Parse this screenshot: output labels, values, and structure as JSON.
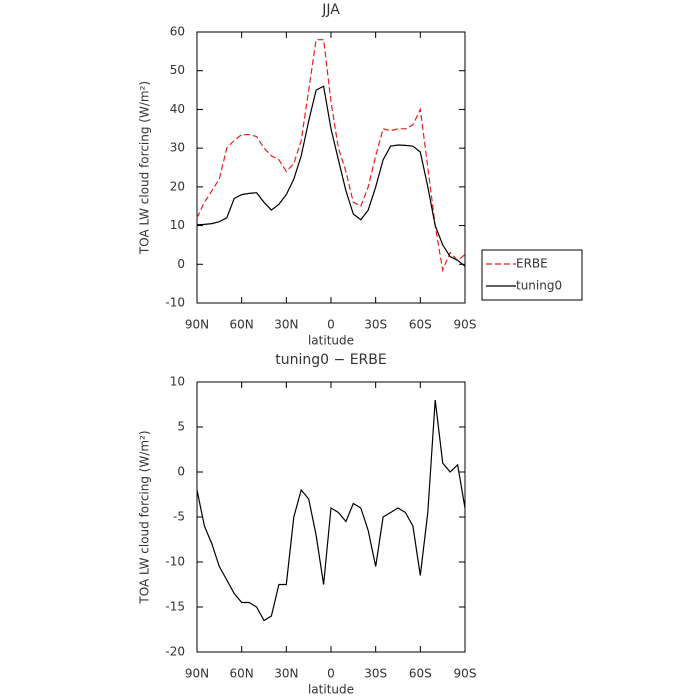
{
  "chart_data": [
    {
      "type": "line",
      "title": "JJA",
      "xlabel": "latitude",
      "ylabel": "TOA LW cloud forcing (W/m²)",
      "x": [
        90,
        85,
        80,
        75,
        70,
        65,
        60,
        55,
        50,
        45,
        40,
        35,
        30,
        25,
        20,
        15,
        10,
        5,
        0,
        -5,
        -10,
        -15,
        -20,
        -25,
        -30,
        -35,
        -40,
        -45,
        -50,
        -55,
        -60,
        -65,
        -70,
        -75,
        -80,
        -85,
        -90
      ],
      "series": [
        {
          "name": "ERBE",
          "color": "#e8221a",
          "dash": true,
          "values": [
            12,
            16,
            19,
            22,
            30,
            32,
            33.5,
            33.5,
            33,
            30,
            28,
            27,
            24,
            26,
            32,
            45,
            58,
            58,
            42,
            30,
            24,
            16,
            15,
            20,
            28,
            35,
            34.5,
            35,
            35,
            36,
            40,
            25,
            10,
            -1.5,
            3,
            1,
            2.5
          ]
        },
        {
          "name": "tuning0",
          "color": "#000000",
          "dash": false,
          "values": [
            10.2,
            10.3,
            10.5,
            11,
            12,
            17,
            18,
            18.3,
            18.5,
            16,
            14,
            15.5,
            18,
            22,
            28,
            37,
            45,
            46,
            35,
            27,
            19,
            13,
            11.5,
            14,
            20,
            27,
            30.5,
            30.8,
            30.7,
            30.5,
            29,
            20,
            10,
            5,
            2,
            1,
            -0.5
          ]
        }
      ],
      "xlim": [
        90,
        -90
      ],
      "xticks": [
        {
          "value": 90,
          "label": "90N"
        },
        {
          "value": 60,
          "label": "60N"
        },
        {
          "value": 30,
          "label": "30N"
        },
        0,
        {
          "value": -30,
          "label": "30S"
        },
        {
          "value": -60,
          "label": "60S"
        },
        {
          "value": -90,
          "label": "90S"
        }
      ],
      "ylim": [
        -10,
        60
      ],
      "yticks": [
        -10,
        0,
        10,
        20,
        30,
        40,
        50,
        60
      ]
    },
    {
      "type": "line",
      "title": "tuning0 − ERBE",
      "xlabel": "latitude",
      "ylabel": "TOA LW cloud forcing (W/m²)",
      "x": [
        90,
        85,
        80,
        75,
        70,
        65,
        60,
        55,
        50,
        45,
        40,
        35,
        30,
        25,
        20,
        15,
        10,
        5,
        0,
        -5,
        -10,
        -15,
        -20,
        -25,
        -30,
        -35,
        -40,
        -45,
        -50,
        -55,
        -60,
        -65,
        -70,
        -75,
        -80,
        -85,
        -90
      ],
      "series": [
        {
          "color": "#000000",
          "values": [
            -2,
            -6,
            -8,
            -10.5,
            -12,
            -13.5,
            -14.5,
            -14.5,
            -15,
            -16.5,
            -16,
            -12.5,
            -12.5,
            -5,
            -2,
            -3,
            -7,
            -12.5,
            -4,
            -4.5,
            -5.5,
            -3.5,
            -4,
            -6.5,
            -10.5,
            -5,
            -4.5,
            -4,
            -4.5,
            -6,
            -11.5,
            -4.5,
            8,
            1,
            0,
            0.8,
            -4
          ]
        }
      ],
      "xlim": [
        90,
        -90
      ],
      "xticks": [
        {
          "value": 90,
          "label": "90N"
        },
        {
          "value": 60,
          "label": "60N"
        },
        {
          "value": 30,
          "label": "30N"
        },
        0,
        {
          "value": -30,
          "label": "30S"
        },
        {
          "value": -60,
          "label": "60S"
        },
        {
          "value": -90,
          "label": "90S"
        }
      ],
      "ylim": [
        -20,
        10
      ],
      "yticks": [
        -20,
        -15,
        -10,
        -5,
        0,
        5,
        10
      ]
    }
  ]
}
